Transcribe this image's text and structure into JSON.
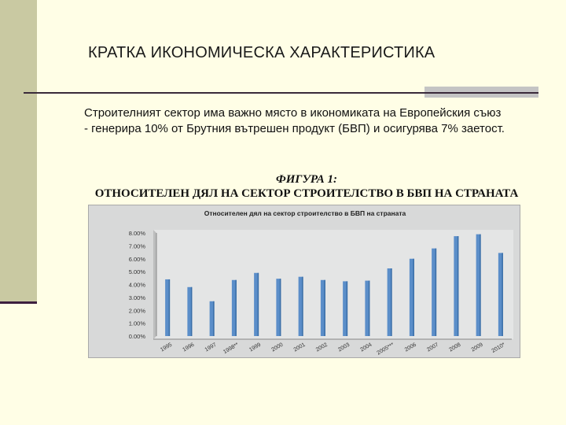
{
  "slide": {
    "title": "КРАТКА ИКОНОМИЧЕСКА ХАРАКТЕРИСТИКА",
    "body_line1": "Строителният сектор има важно място в икономиката на Европейския съюз",
    "body_line2": "- генерира 10% от Брутния вътрешен продукт (БВП) и осигурява 7% заетост.",
    "figure_label": "ФИГУРА 1:",
    "figure_title": "ОТНОСИТЕЛЕН ДЯЛ НА СЕКТОР СТРОИТЕЛСТВО В БВП НА СТРАНАТА"
  },
  "colors": {
    "background": "#fffee6",
    "band": "#c9c9a2",
    "bar": "#5b8ec9",
    "bar_dark": "#3b6fa8",
    "chart_bg": "#d8d9d9"
  },
  "chart_data": {
    "type": "bar",
    "title": "Относителен дял на сектор строителство в БВП на страната",
    "categories": [
      "1995",
      "1996",
      "1997",
      "1998**",
      "1999",
      "2000",
      "2001",
      "2002",
      "2003",
      "2004",
      "2005***",
      "2006",
      "2007",
      "2008",
      "2009",
      "2010*"
    ],
    "values": [
      4.4,
      3.8,
      2.7,
      4.35,
      4.9,
      4.45,
      4.6,
      4.35,
      4.25,
      4.3,
      5.25,
      6.0,
      6.8,
      7.75,
      7.9,
      6.45
    ],
    "y_tick_labels": [
      "8.00%",
      "7.00%",
      "6.00%",
      "5.00%",
      "4.00%",
      "3.00%",
      "2.00%",
      "1.00%",
      "0.00%"
    ],
    "ylim": [
      0,
      8
    ],
    "grid": false,
    "legend": "none"
  }
}
